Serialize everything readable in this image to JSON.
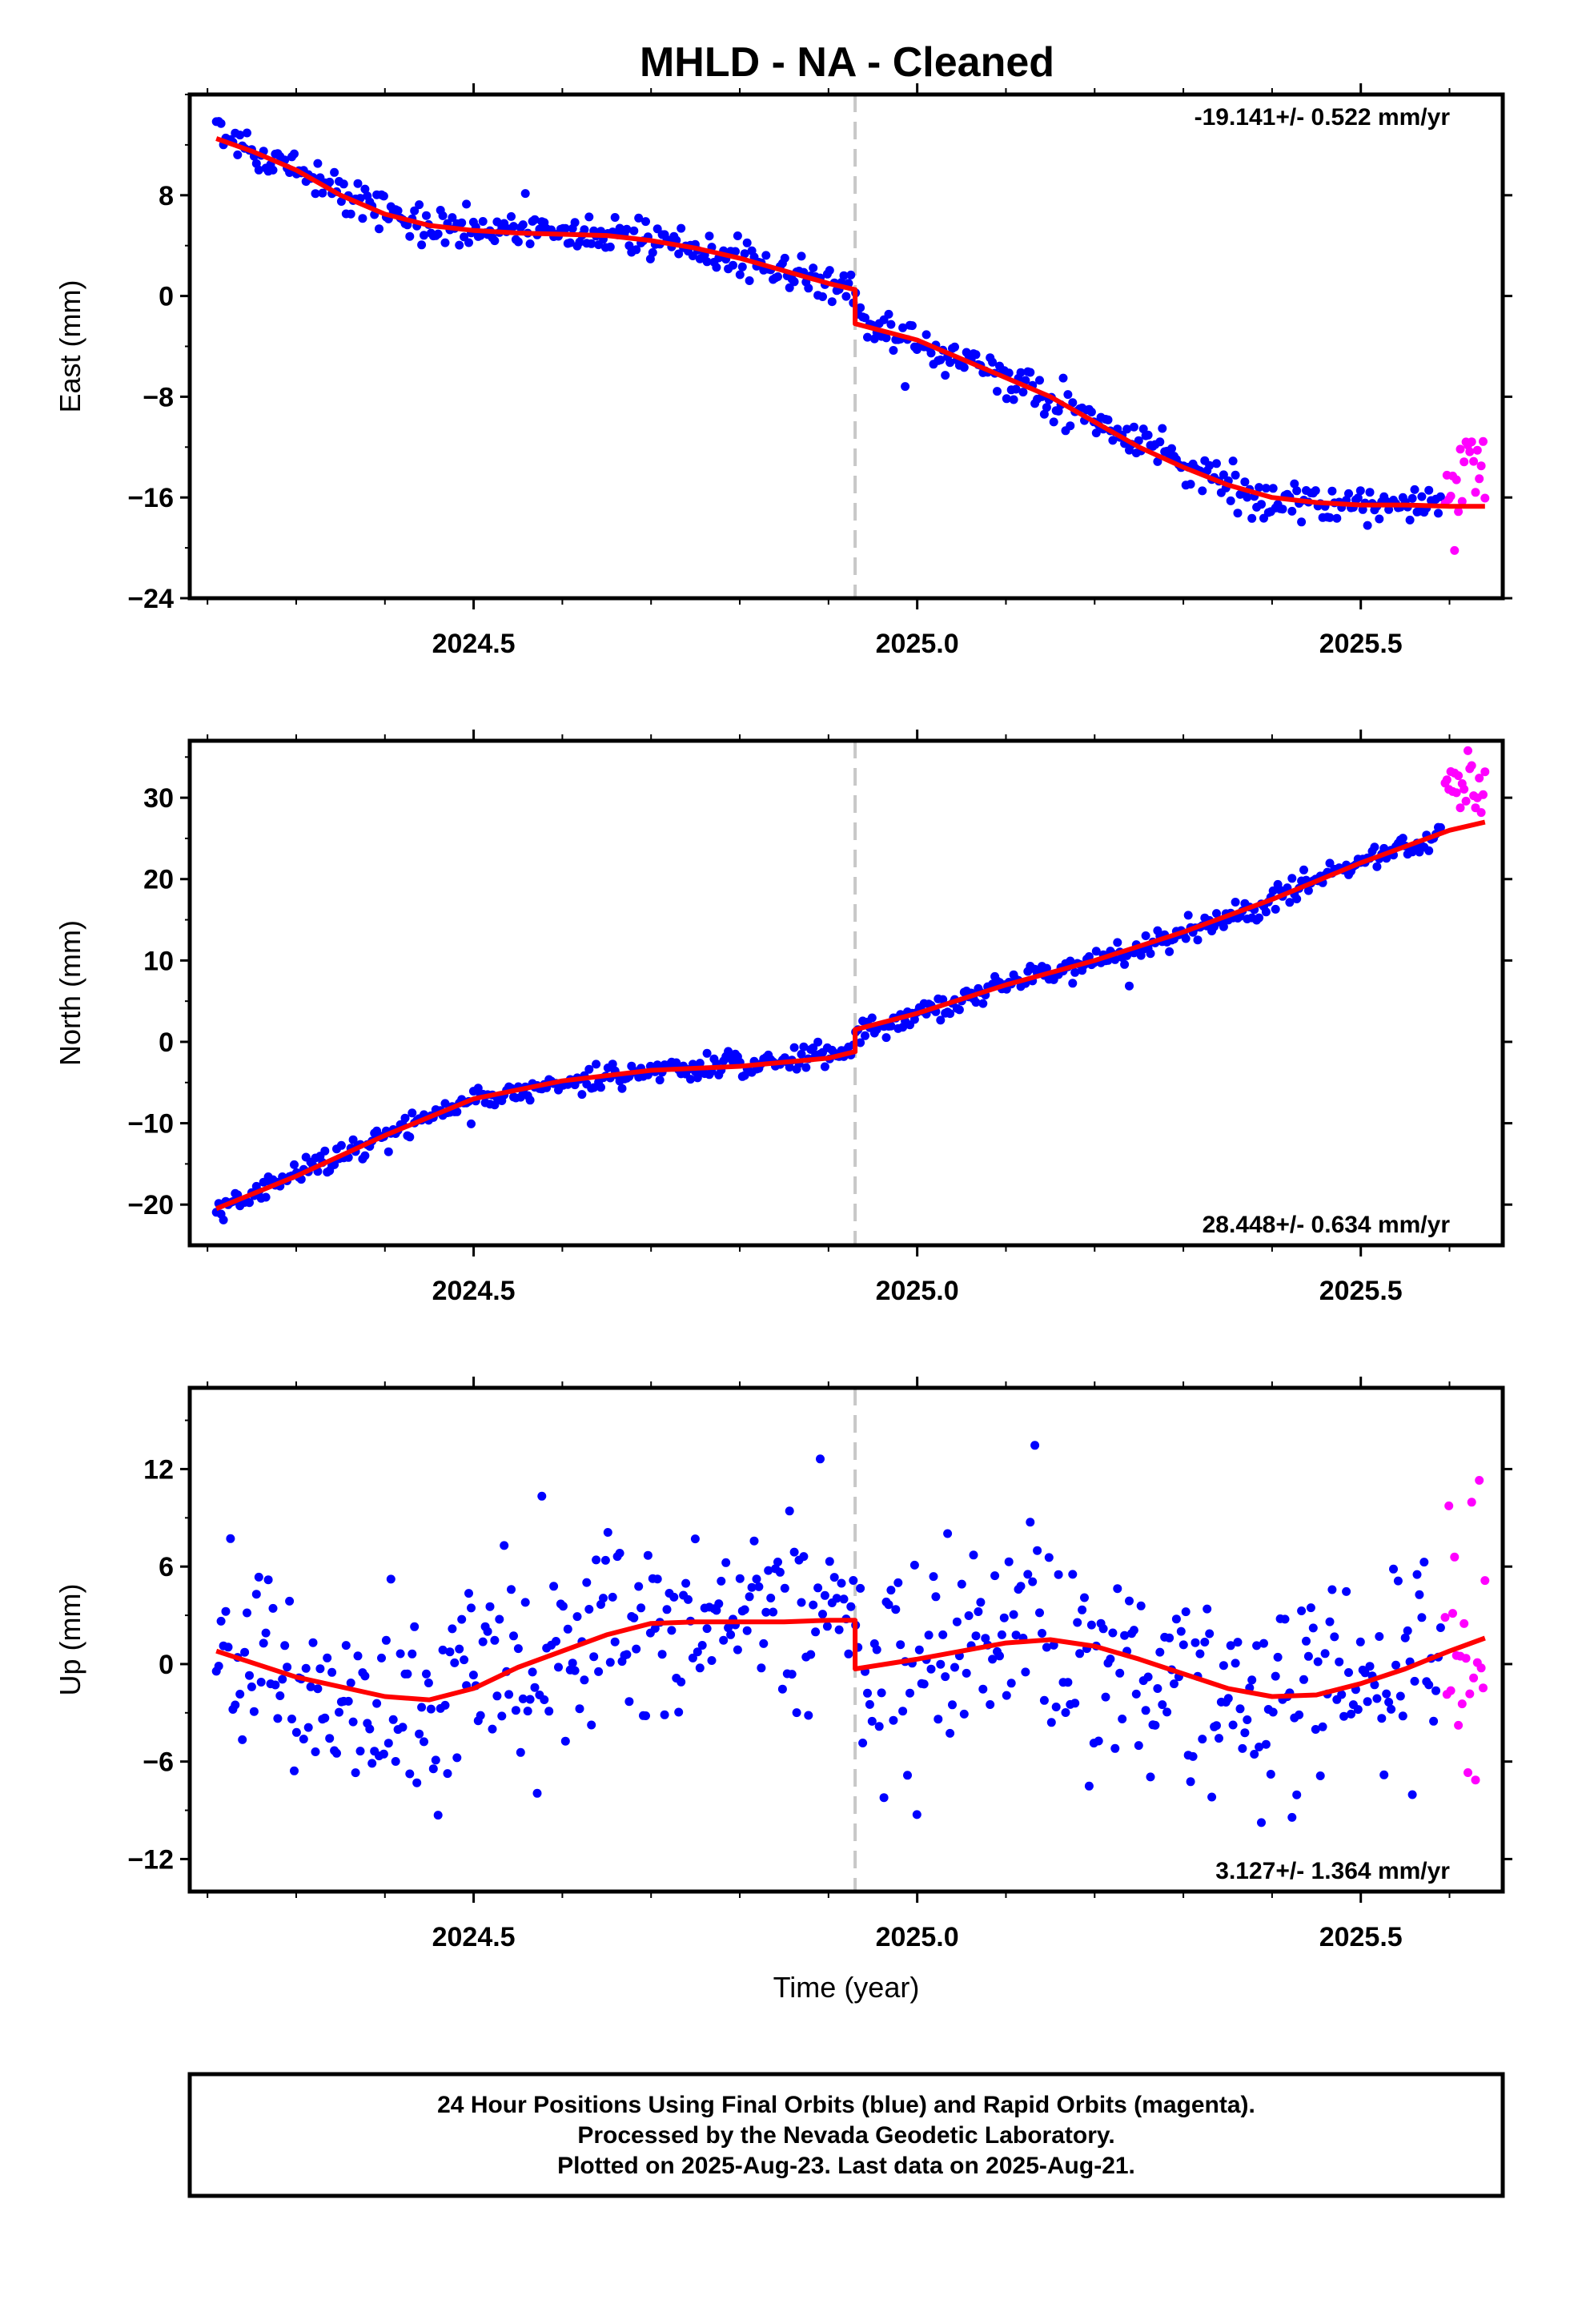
{
  "title": "MHLD  - NA - Cleaned",
  "colors": {
    "final": "#0000ff",
    "rapid": "#ff00ff",
    "model": "#ff0000",
    "break_line": "#c8c8c8"
  },
  "chart_data": [
    {
      "type": "scatter",
      "name": "east",
      "ylabel": "East (mm)",
      "xlabel": "",
      "xlim": [
        2024.18,
        2025.66
      ],
      "ylim": [
        -24,
        16
      ],
      "yticks": [
        "8",
        "0",
        "−8",
        "−16",
        "−24"
      ],
      "ytick_values": [
        8,
        0,
        -8,
        -16,
        -24
      ],
      "xticks": [
        "2024.5",
        "2025.0",
        "2025.5"
      ],
      "xtick_values": [
        2024.5,
        2025.0,
        2025.5
      ],
      "break_year": 2024.93,
      "rate_text": "-19.141+/- 0.522 mm/yr",
      "rate_position": "top-right",
      "model": {
        "x": [
          2024.21,
          2024.25,
          2024.3,
          2024.35,
          2024.4,
          2024.45,
          2024.5,
          2024.55,
          2024.6,
          2024.65,
          2024.7,
          2024.75,
          2024.8,
          2024.85,
          2024.9,
          2024.93,
          2024.93,
          2025.0,
          2025.05,
          2025.1,
          2025.15,
          2025.2,
          2025.25,
          2025.3,
          2025.35,
          2025.4,
          2025.45,
          2025.5,
          2025.55,
          2025.6,
          2025.64
        ],
        "y": [
          12.5,
          11.5,
          10.0,
          8.0,
          6.5,
          5.6,
          5.2,
          5.0,
          4.9,
          4.8,
          4.4,
          3.8,
          3.0,
          2.0,
          1.0,
          0.5,
          -2.2,
          -3.5,
          -5.0,
          -6.5,
          -8.0,
          -10.0,
          -12.0,
          -13.6,
          -15.0,
          -16.0,
          -16.4,
          -16.6,
          -16.6,
          -16.7,
          -16.7
        ]
      },
      "final_anchors": {
        "x": [
          2024.21,
          2024.3,
          2024.37,
          2024.45,
          2024.55,
          2024.65,
          2024.75,
          2024.85,
          2024.925,
          2024.935,
          2025.0,
          2025.1,
          2025.2,
          2025.3,
          2025.38,
          2025.5,
          2025.59
        ],
        "y": [
          12.5,
          10.2,
          7.5,
          5.4,
          5.0,
          4.8,
          3.8,
          2.0,
          0.6,
          -2.0,
          -3.6,
          -6.5,
          -10.0,
          -13.5,
          -15.8,
          -16.6,
          -16.7
        ]
      },
      "final_noise": 1.0,
      "rapid_anchors": {
        "x": [
          2025.595,
          2025.64
        ],
        "y": [
          -16.0,
          -14.0
        ]
      },
      "rapid_noise": 2.5
    },
    {
      "type": "scatter",
      "name": "north",
      "ylabel": "North (mm)",
      "xlabel": "",
      "xlim": [
        2024.18,
        2025.66
      ],
      "ylim": [
        -25,
        37
      ],
      "yticks": [
        "30",
        "20",
        "10",
        "0",
        "−10",
        "−20"
      ],
      "ytick_values": [
        30,
        20,
        10,
        0,
        -10,
        -20
      ],
      "xticks": [
        "2024.5",
        "2025.0",
        "2025.5"
      ],
      "xtick_values": [
        2024.5,
        2025.0,
        2025.5
      ],
      "break_year": 2024.93,
      "rate_text": "28.448+/- 0.634 mm/yr",
      "rate_position": "bottom-right",
      "model": {
        "x": [
          2024.21,
          2024.3,
          2024.4,
          2024.5,
          2024.6,
          2024.7,
          2024.8,
          2024.9,
          2024.93,
          2024.93,
          2025.0,
          2025.1,
          2025.2,
          2025.3,
          2025.4,
          2025.5,
          2025.6,
          2025.64
        ],
        "y": [
          -20.5,
          -16.5,
          -11.5,
          -7.0,
          -4.8,
          -3.5,
          -3.0,
          -2.0,
          -1.2,
          1.5,
          3.5,
          7.0,
          10.0,
          13.5,
          17.5,
          22.0,
          26.0,
          27.0
        ]
      },
      "final_anchors": {
        "x": [
          2024.21,
          2024.3,
          2024.4,
          2024.5,
          2024.6,
          2024.7,
          2024.8,
          2024.925,
          2024.935,
          2025.0,
          2025.1,
          2025.2,
          2025.3,
          2025.4,
          2025.5,
          2025.59
        ],
        "y": [
          -20.5,
          -16.5,
          -11.5,
          -7.0,
          -4.8,
          -3.5,
          -3.0,
          -1.3,
          1.5,
          3.5,
          7.0,
          10.0,
          13.5,
          17.5,
          22.0,
          25.5
        ]
      },
      "final_noise": 1.0,
      "rapid_anchors": {
        "x": [
          2025.595,
          2025.64
        ],
        "y": [
          32.0,
          31.0
        ]
      },
      "rapid_noise": 2.2
    },
    {
      "type": "scatter",
      "name": "up",
      "ylabel": "Up (mm)",
      "xlabel": "Time (year)",
      "xlim": [
        2024.18,
        2025.66
      ],
      "ylim": [
        -14,
        17
      ],
      "yticks": [
        "12",
        "6",
        "0",
        "−6",
        "−12"
      ],
      "ytick_values": [
        12,
        6,
        0,
        -6,
        -12
      ],
      "xticks": [
        "2024.5",
        "2025.0",
        "2025.5"
      ],
      "xtick_values": [
        2024.5,
        2025.0,
        2025.5
      ],
      "break_year": 2024.93,
      "rate_text": "3.127+/- 1.364 mm/yr",
      "rate_position": "bottom-right",
      "model": {
        "x": [
          2024.21,
          2024.3,
          2024.4,
          2024.45,
          2024.5,
          2024.55,
          2024.6,
          2024.65,
          2024.7,
          2024.75,
          2024.8,
          2024.85,
          2024.9,
          2024.93,
          2024.93,
          2025.0,
          2025.05,
          2025.1,
          2025.15,
          2025.2,
          2025.25,
          2025.3,
          2025.35,
          2025.4,
          2025.45,
          2025.5,
          2025.55,
          2025.6,
          2025.64
        ],
        "y": [
          0.8,
          -0.8,
          -2.0,
          -2.2,
          -1.5,
          -0.2,
          0.8,
          1.8,
          2.5,
          2.6,
          2.6,
          2.6,
          2.7,
          2.7,
          -0.3,
          0.3,
          0.8,
          1.3,
          1.5,
          1.1,
          0.3,
          -0.6,
          -1.5,
          -2.0,
          -1.9,
          -1.2,
          -0.3,
          0.8,
          1.6
        ]
      },
      "final_anchors": {
        "x": [
          2024.21,
          2024.3,
          2024.4,
          2024.45,
          2024.5,
          2024.6,
          2024.7,
          2024.8,
          2024.925,
          2024.935,
          2025.05,
          2025.15,
          2025.25,
          2025.35,
          2025.45,
          2025.55,
          2025.59
        ],
        "y": [
          0.8,
          -0.8,
          -2.0,
          -2.2,
          -1.5,
          0.8,
          2.5,
          2.6,
          2.7,
          -0.3,
          0.8,
          1.5,
          0.3,
          -1.5,
          -1.9,
          -0.3,
          0.5
        ]
      },
      "final_noise": 4.2,
      "rapid_anchors": {
        "x": [
          2025.595,
          2025.64
        ],
        "y": [
          2.0,
          2.0
        ]
      },
      "rapid_noise": 6.0
    }
  ],
  "footer": {
    "line1": "24 Hour Positions Using Final Orbits (blue) and Rapid Orbits (magenta).",
    "line2": "Processed by the Nevada Geodetic Laboratory.",
    "line3": "Plotted on 2025-Aug-23. Last data on 2025-Aug-21."
  }
}
